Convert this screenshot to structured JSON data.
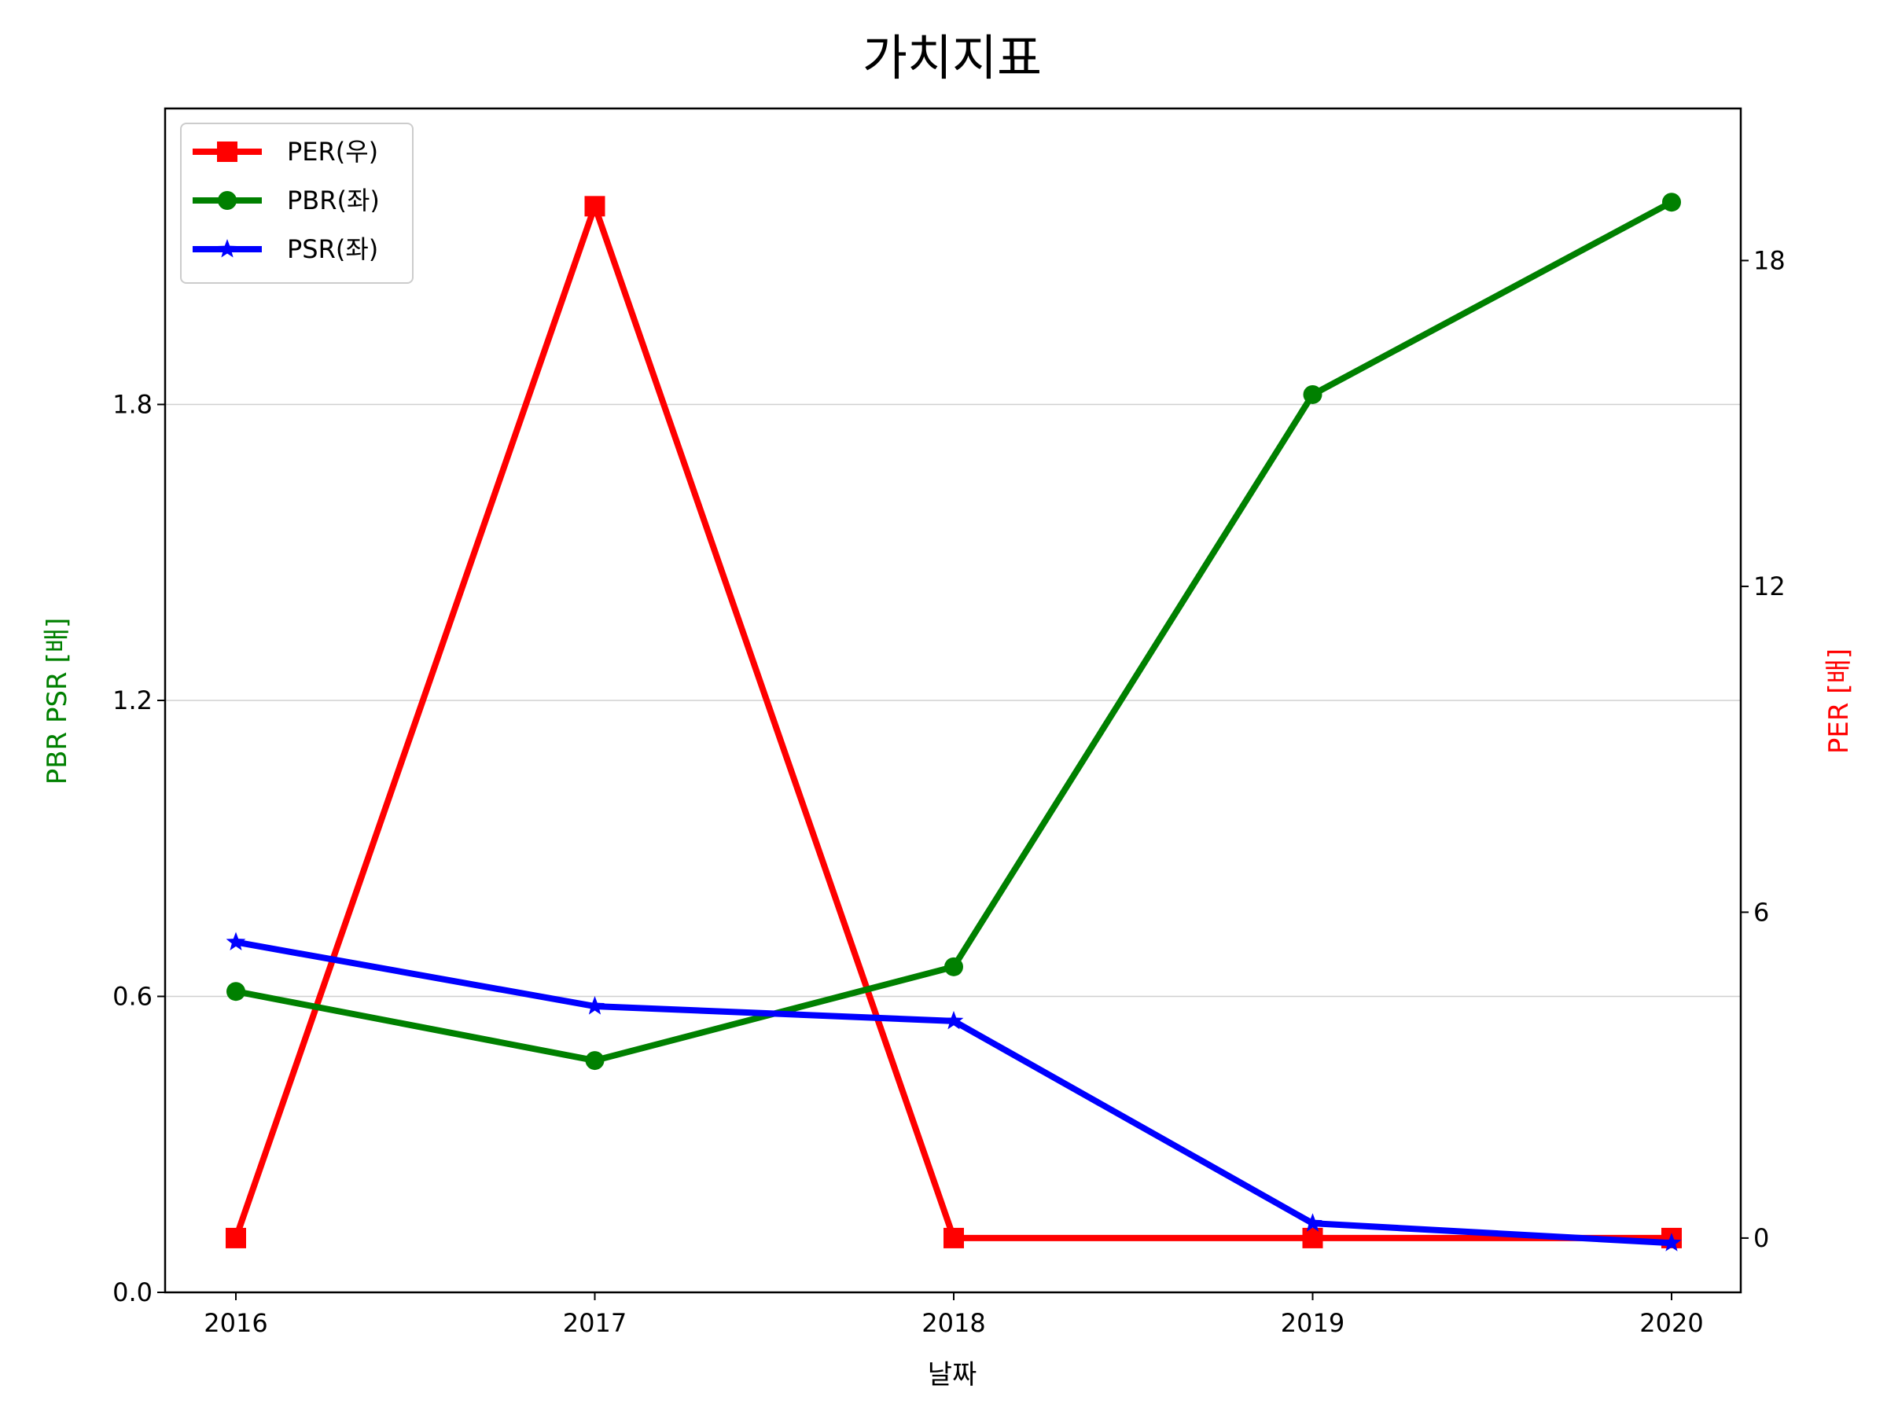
{
  "chart_data": {
    "type": "line",
    "title": "가치지표",
    "xlabel": "날짜",
    "ylabel_left": "PBR PSR [배]",
    "ylabel_right": "PER [배]",
    "categories": [
      "2016",
      "2017",
      "2018",
      "2019",
      "2020"
    ],
    "left_axis": {
      "ylim": [
        0.0,
        2.4
      ],
      "ticks": [
        0.0,
        0.6,
        1.2,
        1.8
      ],
      "tick_labels": [
        "0.0",
        "0.6",
        "1.2",
        "1.8"
      ],
      "grid": true
    },
    "right_axis": {
      "ylim": [
        -1,
        20.8
      ],
      "ticks": [
        0,
        6,
        12,
        18
      ],
      "tick_labels": [
        "0",
        "6",
        "12",
        "18"
      ]
    },
    "legend_position": "top-left",
    "series": [
      {
        "name": "PER(우)",
        "axis": "right",
        "color": "#ff0000",
        "marker": "square",
        "values": [
          0,
          19,
          0,
          0,
          0
        ]
      },
      {
        "name": "PBR(좌)",
        "axis": "left",
        "color": "#008000",
        "marker": "circle",
        "values": [
          0.61,
          0.47,
          0.66,
          1.82,
          2.21
        ]
      },
      {
        "name": "PSR(좌)",
        "axis": "left",
        "color": "#0000ff",
        "marker": "star",
        "values": [
          0.71,
          0.58,
          0.55,
          0.14,
          0.1
        ]
      }
    ],
    "colors": {
      "left_label": "#008000",
      "right_label": "#ff0000"
    }
  }
}
